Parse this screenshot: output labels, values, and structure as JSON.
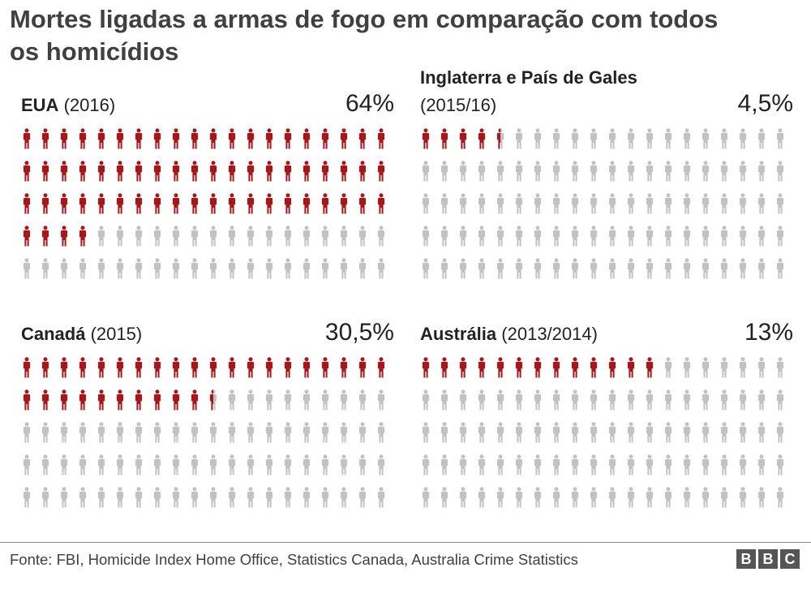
{
  "title": "Mortes ligadas a armas de fogo em comparação com todos os homicídios",
  "colors": {
    "highlight": "#a8161a",
    "rest": "#c2c2c2"
  },
  "chart_data": [
    {
      "type": "pictogram",
      "country": "EUA",
      "period": "(2016)",
      "value_label": "64%",
      "value": 64,
      "total_icons": 100,
      "rows": 5,
      "cols": 20
    },
    {
      "type": "pictogram",
      "country": "Inglaterra e País de Gales",
      "period": "(2015/16)",
      "value_label": "4,5%",
      "value": 4.5,
      "total_icons": 100,
      "rows": 5,
      "cols": 20
    },
    {
      "type": "pictogram",
      "country": "Canadá",
      "period": "(2015)",
      "value_label": "30,5%",
      "value": 30.5,
      "total_icons": 100,
      "rows": 5,
      "cols": 20
    },
    {
      "type": "pictogram",
      "country": "Austrália",
      "period": "(2013/2014)",
      "value_label": "13%",
      "value": 13,
      "total_icons": 100,
      "rows": 5,
      "cols": 20
    }
  ],
  "source": "Fonte: FBI, Homicide Index Home Office, Statistics Canada, Australia Crime Statistics",
  "logo": {
    "letters": [
      "B",
      "B",
      "C"
    ]
  }
}
